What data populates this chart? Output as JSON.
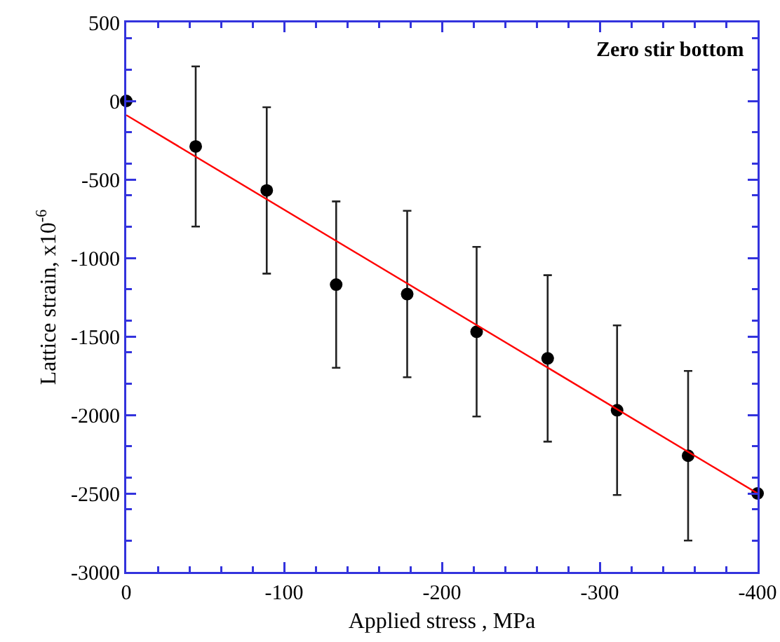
{
  "chart_data": {
    "type": "scatter",
    "xlabel": "Applied stress , MPa",
    "ylabel": "Lattice strain, x10$^{-6}$",
    "annotations": [
      "Zero stir bottom"
    ],
    "xlim": [
      0,
      -400
    ],
    "xticks": [
      0,
      -100,
      -200,
      -300,
      -400
    ],
    "ylim": [
      -3000,
      500
    ],
    "yticks": [
      -3000,
      -2500,
      -2000,
      -1500,
      -1000,
      -500,
      0,
      500
    ],
    "grid": false,
    "series": [
      {
        "color": "#000000",
        "marker": "circle",
        "x": [
          0,
          -44,
          -89,
          -133,
          -178,
          -222,
          -267,
          -311,
          -356,
          -400
        ],
        "values": [
          0,
          -290,
          -570,
          -1170,
          -1230,
          -1470,
          -1640,
          -1970,
          -2260,
          -2500
        ],
        "errors": [
          null,
          510,
          530,
          530,
          530,
          540,
          530,
          540,
          540,
          null
        ]
      },
      {
        "type": "line",
        "color": "#ff0000",
        "marker": "none",
        "x": [
          0,
          -400
        ],
        "values": [
          -90,
          -2500
        ],
        "line_style": "solid"
      }
    ]
  }
}
